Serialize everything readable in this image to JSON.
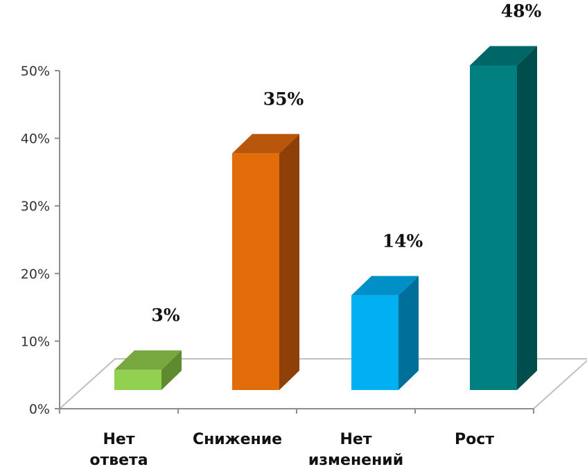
{
  "chart_data": {
    "type": "bar",
    "categories": [
      [
        "Нет",
        "ответа"
      ],
      [
        "Снижение"
      ],
      [
        "Нет",
        "изменений"
      ],
      [
        "Рост"
      ]
    ],
    "values": [
      3,
      35,
      14,
      48
    ],
    "value_labels": [
      "3%",
      "35%",
      "14%",
      "48%"
    ],
    "y_ticks": [
      "0%",
      "10%",
      "20%",
      "30%",
      "40%",
      "50%"
    ],
    "ylim": [
      0,
      50
    ],
    "grid": false,
    "style": "3d",
    "colors": [
      {
        "front": "#92D050",
        "side": "#5F8A30",
        "top": "#76A83F"
      },
      {
        "front": "#E36C0A",
        "side": "#8E4008",
        "top": "#B8560B"
      },
      {
        "front": "#00B0F0",
        "side": "#00709B",
        "top": "#0090C8"
      },
      {
        "front": "#008080",
        "side": "#004D4D",
        "top": "#006666"
      }
    ]
  }
}
